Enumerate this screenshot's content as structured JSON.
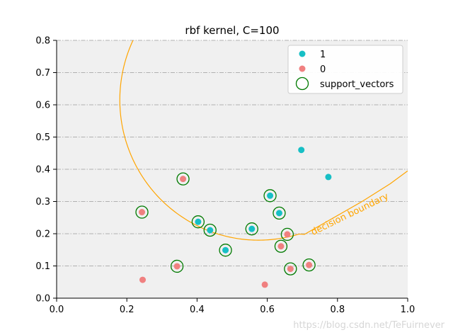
{
  "chart_data": {
    "type": "scatter",
    "title": "rbf kernel, C=100",
    "xlabel": "",
    "ylabel": "",
    "xlim": [
      0.0,
      1.0
    ],
    "ylim": [
      0.0,
      0.8
    ],
    "xticks": [
      "0.0",
      "0.2",
      "0.4",
      "0.6",
      "0.8",
      "1.0"
    ],
    "yticks": [
      "0.0",
      "0.1",
      "0.2",
      "0.3",
      "0.4",
      "0.5",
      "0.6",
      "0.7",
      "0.8"
    ],
    "grid": "horizontal, dash-dot",
    "legend_position": "top-right",
    "series": [
      {
        "name": "1",
        "color": "#17bfc5",
        "points": [
          [
            0.697,
            0.46
          ],
          [
            0.774,
            0.376
          ],
          [
            0.608,
            0.318
          ],
          [
            0.634,
            0.264
          ],
          [
            0.403,
            0.237
          ],
          [
            0.437,
            0.211
          ],
          [
            0.556,
            0.215
          ],
          [
            0.481,
            0.149
          ]
        ]
      },
      {
        "name": "0",
        "color": "#f08080",
        "points": [
          [
            0.36,
            0.37
          ],
          [
            0.243,
            0.267
          ],
          [
            0.245,
            0.057
          ],
          [
            0.343,
            0.099
          ],
          [
            0.593,
            0.042
          ],
          [
            0.657,
            0.198
          ],
          [
            0.639,
            0.161
          ],
          [
            0.666,
            0.091
          ],
          [
            0.719,
            0.103
          ]
        ]
      }
    ],
    "support_vectors": {
      "name": "support_vectors",
      "color": "#007a00",
      "points": [
        [
          0.36,
          0.37
        ],
        [
          0.608,
          0.318
        ],
        [
          0.243,
          0.267
        ],
        [
          0.634,
          0.264
        ],
        [
          0.403,
          0.237
        ],
        [
          0.437,
          0.211
        ],
        [
          0.556,
          0.215
        ],
        [
          0.657,
          0.198
        ],
        [
          0.639,
          0.161
        ],
        [
          0.481,
          0.149
        ],
        [
          0.343,
          0.099
        ],
        [
          0.719,
          0.103
        ],
        [
          0.666,
          0.091
        ]
      ]
    },
    "decision_boundary": {
      "label": "decision boundary",
      "color": "#ffa500",
      "arc": {
        "cx": 0.575,
        "cy": 0.615,
        "rx": 0.395,
        "ry": 0.435,
        "start_deg": 118,
        "end_deg": 287
      },
      "tail": [
        [
          0.706,
          0.198
        ],
        [
          0.87,
          0.3
        ],
        [
          0.95,
          0.355
        ],
        [
          1.0,
          0.395
        ]
      ]
    },
    "watermark": "https://blog.csdn.net/TeFuirnever"
  }
}
